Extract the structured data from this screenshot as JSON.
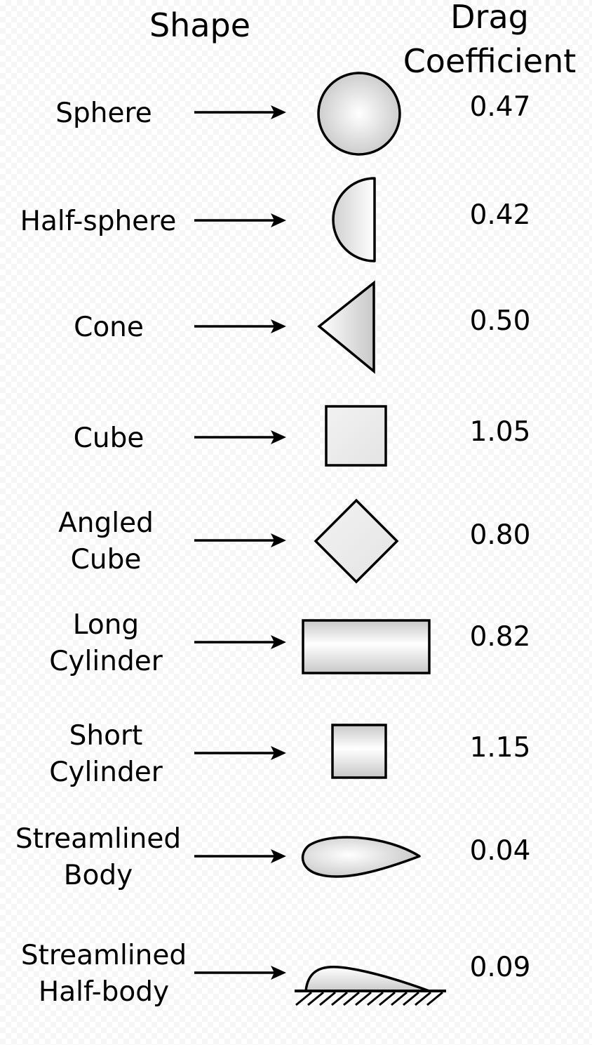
{
  "header": {
    "shape": "Shape",
    "drag_line1": "Drag",
    "drag_line2": "Coefficient"
  },
  "colors": {
    "outline": "#000000",
    "fill_light": "#ffffff",
    "fill_dark": "#c8c8c8"
  },
  "rows": [
    {
      "shape": "sphere",
      "label": [
        "Sphere"
      ],
      "value": "0.47"
    },
    {
      "shape": "half-sphere",
      "label": [
        "Half-sphere"
      ],
      "value": "0.42"
    },
    {
      "shape": "cone",
      "label": [
        "Cone"
      ],
      "value": "0.50"
    },
    {
      "shape": "cube",
      "label": [
        "Cube"
      ],
      "value": "1.05"
    },
    {
      "shape": "angled-cube",
      "label": [
        "Angled",
        "Cube"
      ],
      "value": "0.80"
    },
    {
      "shape": "long-cylinder",
      "label": [
        "Long",
        "Cylinder"
      ],
      "value": "0.82"
    },
    {
      "shape": "short-cylinder",
      "label": [
        "Short",
        "Cylinder"
      ],
      "value": "1.15"
    },
    {
      "shape": "streamlined-body",
      "label": [
        "Streamlined",
        "Body"
      ],
      "value": "0.04"
    },
    {
      "shape": "streamlined-half-body",
      "label": [
        "Streamlined",
        "Half-body"
      ],
      "value": "0.09"
    }
  ]
}
